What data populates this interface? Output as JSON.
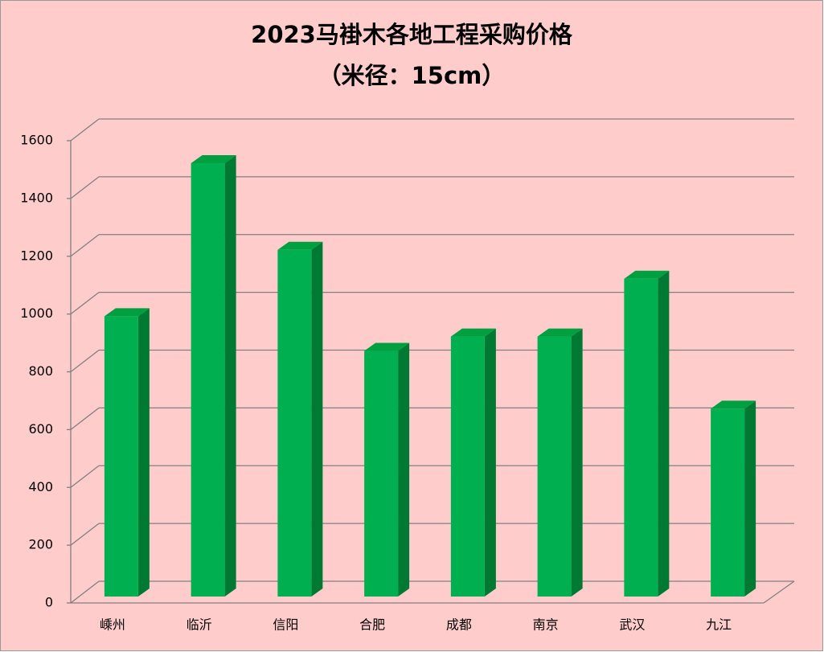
{
  "chart_data": {
    "type": "bar3d",
    "title": "2023马褂木各地工程采购价格",
    "subtitle": "（米径：15cm）",
    "categories": [
      "嵊州",
      "临沂",
      "信阳",
      "合肥",
      "成都",
      "南京",
      "武汉",
      "九江"
    ],
    "values": [
      970,
      1500,
      1200,
      850,
      900,
      900,
      1100,
      650
    ],
    "color": "#00b050",
    "ylim": [
      0,
      1600
    ],
    "yticks": [
      0,
      200,
      400,
      600,
      800,
      1000,
      1200,
      1400,
      1600
    ],
    "grid": true
  }
}
